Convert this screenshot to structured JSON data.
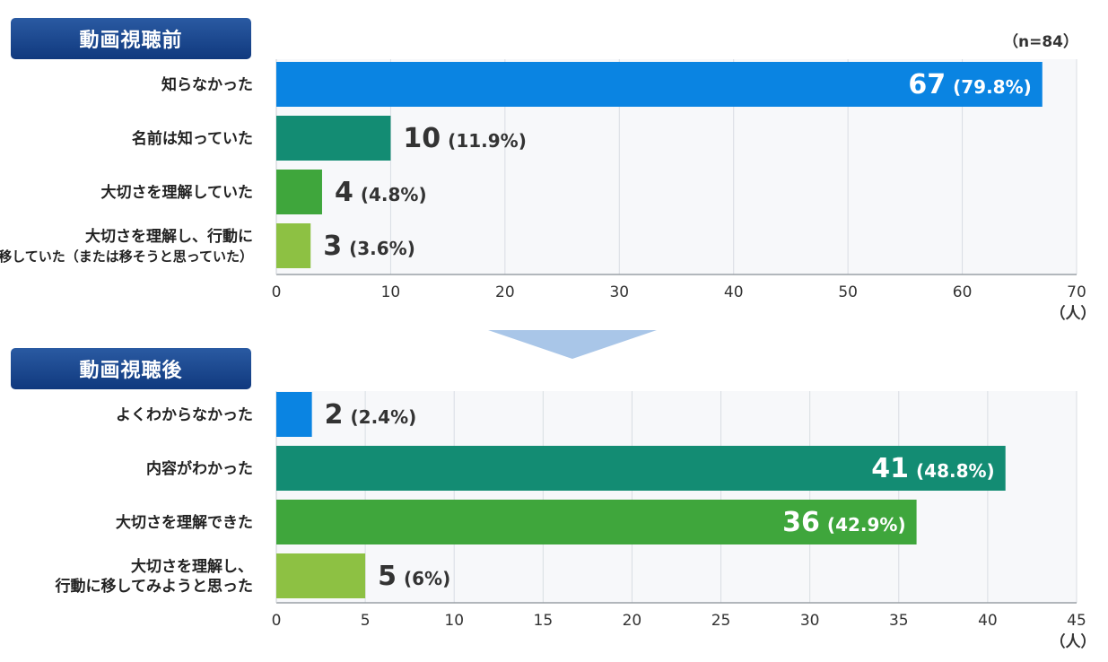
{
  "chart_data": [
    {
      "type": "bar",
      "title": "動画視聴前",
      "note": "（n=84）",
      "categories": [
        [
          "知らなかった"
        ],
        [
          "名前は知っていた"
        ],
        [
          "大切さを理解していた"
        ],
        [
          "大切さを理解し、行動に",
          "移していた（または移そうと思っていた）"
        ]
      ],
      "values": [
        67,
        10,
        4,
        3
      ],
      "value_labels": [
        "67",
        "10",
        "4",
        "3"
      ],
      "percent_labels": [
        "(79.8%)",
        "(11.9%)",
        "(4.8%)",
        "(3.6%)"
      ],
      "colors": [
        "#0a84e2",
        "#138c73",
        "#3fa63c",
        "#8dc143"
      ],
      "xlim": [
        0,
        70
      ],
      "xticks": [
        0,
        10,
        20,
        30,
        40,
        50,
        60,
        70
      ],
      "xunit": "（人）",
      "grid": true
    },
    {
      "type": "bar",
      "title": "動画視聴後",
      "categories": [
        [
          "よくわからなかった"
        ],
        [
          "内容がわかった"
        ],
        [
          "大切さを理解できた"
        ],
        [
          "大切さを理解し、",
          "行動に移してみようと思った"
        ]
      ],
      "values": [
        2,
        41,
        36,
        5
      ],
      "value_labels": [
        "2",
        "41",
        "36",
        "5"
      ],
      "percent_labels": [
        "(2.4%)",
        "(48.8%)",
        "(42.9%)",
        "(6%)"
      ],
      "colors": [
        "#0a84e2",
        "#138c73",
        "#3fa63c",
        "#8dc143"
      ],
      "xlim": [
        0,
        45
      ],
      "xticks": [
        0,
        5,
        10,
        15,
        20,
        25,
        30,
        35,
        40,
        45
      ],
      "xunit": "（人）",
      "grid": true
    }
  ]
}
